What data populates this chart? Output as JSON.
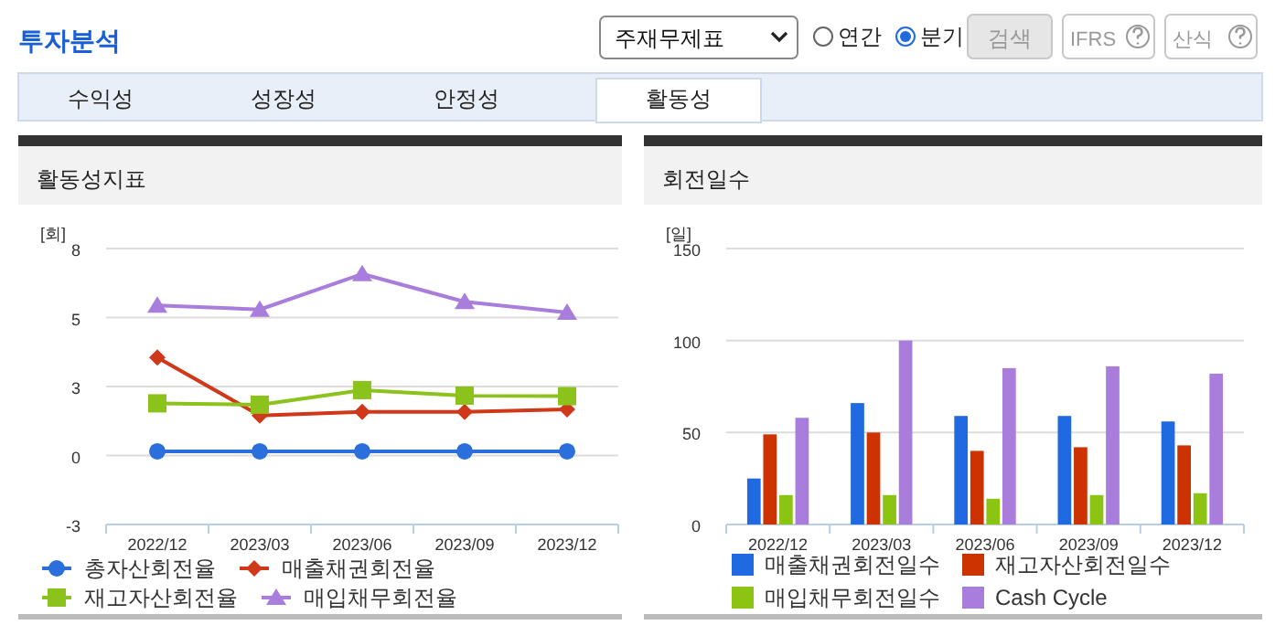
{
  "chart_data": [
    {
      "type": "line",
      "title": "활동성지표",
      "ylabel": "[회]",
      "categories": [
        "2022/12",
        "2023/03",
        "2023/06",
        "2023/09",
        "2023/12"
      ],
      "ylim": [
        -2.5,
        7.5
      ],
      "yticks": [
        {
          "value": -2.5,
          "label": "-3"
        },
        0,
        {
          "value": 2.5,
          "label": "3"
        },
        5,
        {
          "value": 7.5,
          "label": "8"
        }
      ],
      "grid": "y",
      "legend": "bottom",
      "line_style": "solid",
      "annotations": [
        "투자분석",
        "주재무제표",
        "연간",
        "분기",
        "검색",
        "IFRS",
        "산식",
        "수익성",
        "성장성",
        "안정성",
        "활동성"
      ],
      "series": [
        {
          "name": "총자산회전율",
          "color": "#2a6fdb",
          "marker": "circle",
          "values": [
            0.15,
            0.15,
            0.15,
            0.15,
            0.15
          ]
        },
        {
          "name": "매출채권회전율",
          "color": "#d0381a",
          "marker": "diamond",
          "values": [
            3.55,
            1.45,
            1.58,
            1.58,
            1.67
          ]
        },
        {
          "name": "재고자산회전율",
          "color": "#8cc21c",
          "marker": "square",
          "values": [
            1.89,
            1.84,
            2.37,
            2.17,
            2.15
          ]
        },
        {
          "name": "매입채무회전율",
          "color": "#a97ddc",
          "marker": "triangle",
          "values": [
            5.44,
            5.29,
            6.58,
            5.57,
            5.18
          ]
        }
      ]
    },
    {
      "type": "bar",
      "title": "회전일수",
      "ylabel": "[일]",
      "categories": [
        "2022/12",
        "2023/03",
        "2023/06",
        "2023/09",
        "2023/12"
      ],
      "ylim": [
        0,
        150
      ],
      "yticks": [
        0,
        50,
        100,
        150
      ],
      "grid": "y",
      "legend": "bottom",
      "series": [
        {
          "name": "매출채권회전일수",
          "color": "#1f6ae0",
          "values": [
            25,
            66,
            59,
            59,
            56
          ]
        },
        {
          "name": "재고자산회전일수",
          "color": "#cc3300",
          "values": [
            49,
            50,
            40,
            42,
            43
          ]
        },
        {
          "name": "매입채무회전일수",
          "color": "#8cc414",
          "values": [
            16,
            16,
            14,
            16,
            17
          ]
        },
        {
          "name": "Cash Cycle",
          "color": "#a87ddc",
          "values": [
            58,
            100,
            85,
            86,
            82
          ]
        }
      ]
    }
  ]
}
